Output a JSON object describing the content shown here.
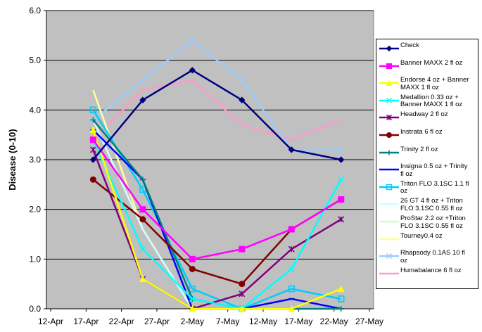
{
  "chart_data": {
    "type": "line",
    "title": "",
    "xlabel": "",
    "ylabel": "Disease (0-10)",
    "ylim": [
      0,
      6
    ],
    "yticks": [
      "0.0",
      "1.0",
      "2.0",
      "3.0",
      "4.0",
      "5.0",
      "6.0"
    ],
    "xticks": [
      "12-Apr",
      "17-Apr",
      "22-Apr",
      "27-Apr",
      "2-May",
      "7-May",
      "12-May",
      "17-May",
      "22-May",
      "27-May"
    ],
    "x": [
      "18-Apr",
      "25-Apr",
      "2-May",
      "9-May",
      "16-May",
      "23-May"
    ],
    "grid": true,
    "plot_background": "#c0c0c0",
    "legend_position": "right",
    "series": [
      {
        "name": "Check",
        "color": "#000080",
        "marker": "diamond",
        "values": [
          3.0,
          4.2,
          4.8,
          4.2,
          3.2,
          3.0
        ]
      },
      {
        "name": "Banner MAXX 2 fl oz",
        "color": "#ff00ff",
        "marker": "square",
        "values": [
          3.4,
          2.0,
          1.0,
          1.2,
          1.6,
          2.2
        ]
      },
      {
        "name": "Endorse 4 oz + Banner MAXX 1 fl oz",
        "color": "#ffff00",
        "marker": "triangle",
        "values": [
          3.6,
          0.6,
          0.0,
          0.0,
          0.0,
          0.4
        ]
      },
      {
        "name": "Medallion 0.33 oz + Banner MAXX 1 fl oz",
        "color": "#00ffff",
        "marker": "x",
        "values": [
          3.4,
          1.2,
          0.2,
          0.0,
          0.8,
          2.6
        ]
      },
      {
        "name": "Headway 2 fl oz",
        "color": "#800080",
        "marker": "star",
        "values": [
          3.2,
          0.6,
          0.0,
          0.3,
          1.2,
          1.8
        ]
      },
      {
        "name": "Instrata 6 fl oz",
        "color": "#800000",
        "marker": "circle",
        "values": [
          2.6,
          1.8,
          0.8,
          0.5,
          1.6,
          2.2
        ]
      },
      {
        "name": "Trinity 2 fl oz",
        "color": "#008080",
        "marker": "plus",
        "values": [
          3.8,
          2.6,
          0.2,
          0.0,
          0.0,
          0.0
        ]
      },
      {
        "name": "Insigna 0.5 oz + Trinity fl oz",
        "color": "#0000ff",
        "marker": "dash",
        "values": [
          3.6,
          2.6,
          0.0,
          0.0,
          0.2,
          0.0
        ]
      },
      {
        "name": "Triton FLO 3.1SC 1.1 fl oz",
        "color": "#00ccff",
        "marker": "square-open",
        "values": [
          4.0,
          2.4,
          0.4,
          0.0,
          0.4,
          0.2
        ]
      },
      {
        "name": "26 GT 4 fl oz + Triton FLO 3.1SC  0.55 fl oz",
        "color": "#ccffff",
        "marker": "none",
        "values": [
          3.8,
          1.6,
          0.0,
          0.0,
          0.2,
          0.0
        ]
      },
      {
        "name": "ProStar 2.2 oz +Triton FLO 3.1SC 0.55 fl oz",
        "color": "#ccffcc",
        "marker": "none",
        "values": [
          3.8,
          1.6,
          0.0,
          0.0,
          0.0,
          0.0
        ]
      },
      {
        "name": "Tourney0.4 oz",
        "color": "#ffff99",
        "marker": "none",
        "values": [
          4.4,
          1.6,
          0.0,
          0.0,
          0.0,
          0.0
        ]
      },
      {
        "name": "Rhapsody 0.1AS 10 fl oz",
        "color": "#99ccff",
        "marker": "x",
        "values": [
          3.8,
          4.6,
          5.4,
          4.6,
          3.2,
          3.2
        ]
      },
      {
        "name": "Humabalance 6 fl oz",
        "color": "#ff99cc",
        "marker": "none",
        "values": [
          3.4,
          4.4,
          4.6,
          3.7,
          3.4,
          3.8
        ]
      }
    ]
  },
  "legend_labels": [
    [
      "Check"
    ],
    [
      "Banner MAXX 2 fl oz"
    ],
    [
      "Endorse 4 oz + Banner",
      "MAXX 1 fl oz"
    ],
    [
      "Medallion 0.33 oz +",
      "Banner MAXX 1 fl oz"
    ],
    [
      "Headway 2 fl oz"
    ],
    [
      "Instrata 6 fl oz"
    ],
    [
      "Trinity 2 fl oz"
    ],
    [
      "Insigna 0.5 oz + Trinity",
      "fl oz"
    ],
    [
      "Triton FLO 3.1SC 1.1 fl",
      "oz"
    ],
    [
      "26 GT 4 fl oz + Triton",
      "FLO 3.1SC  0.55 fl oz"
    ],
    [
      "ProStar 2.2 oz +Triton",
      "FLO 3.1SC 0.55 fl oz"
    ],
    [
      "Tourney0.4 oz"
    ],
    [
      "Rhapsody 0.1AS 10 fl",
      "oz"
    ],
    [
      "Humabalance 6 fl oz"
    ]
  ]
}
